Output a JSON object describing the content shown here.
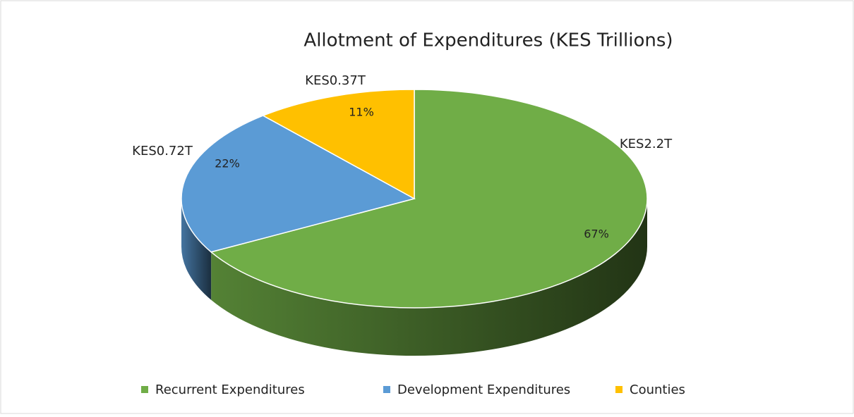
{
  "chart_data": {
    "type": "pie",
    "title": "Allotment of Expenditures (KES Trillions)",
    "categories": [
      "Recurrent Expenditures",
      "Development Expenditures",
      "Counties"
    ],
    "values": [
      2.2,
      0.72,
      0.37
    ],
    "value_labels": [
      "KES2.2T",
      "KES0.72T",
      "KES0.37T"
    ],
    "percent_labels": [
      "67%",
      "22%",
      "11%"
    ],
    "colors": [
      "#70ad47",
      "#5b9bd5",
      "#ffc000"
    ],
    "legend": "bottom"
  }
}
